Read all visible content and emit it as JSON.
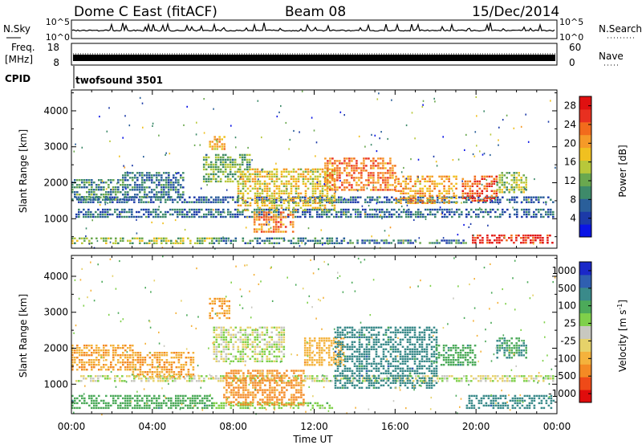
{
  "header": {
    "station": "Dome C East (fitACF)",
    "beam": "Beam 08",
    "date": "15/Dec/2014"
  },
  "status_panels": {
    "nsky_label": "N.Sky",
    "nsearch_label": "N.Search",
    "freq_label_line1": "Freq.",
    "freq_label_line2": "[MHz]",
    "nave_label": "Nave",
    "cpid_label": "CPID",
    "cpid_value": "twofsound 3501",
    "noise_ticks_left": [
      "10^5",
      "10^0"
    ],
    "noise_ticks_right": [
      "10^5",
      "10^0"
    ],
    "freq_ticks": [
      "18",
      "8"
    ],
    "nave_ticks": [
      "60",
      "0"
    ]
  },
  "colors": {
    "power_scale": [
      "#0a14e6",
      "#1c3aa8",
      "#2a5f9a",
      "#3e8a6a",
      "#6aa84f",
      "#b8c83a",
      "#f0c020",
      "#f59a28",
      "#f26b1c",
      "#e83020",
      "#e01010"
    ],
    "velocity_scale": [
      "#e00c0c",
      "#ef4a18",
      "#f48a24",
      "#f4b23c",
      "#e6d26a",
      "#c8c8c0",
      "#7fd04a",
      "#4caa5a",
      "#3a8a8a",
      "#2f5fb0",
      "#1a28c8"
    ]
  },
  "chart_data": [
    {
      "type": "heatmap",
      "title": "",
      "xlabel": "",
      "ylabel": "Slant Range [km]",
      "x_ticks": [
        "00:00",
        "04:00",
        "08:00",
        "12:00",
        "16:00",
        "20:00",
        "00:00"
      ],
      "xlim_hours": [
        0,
        24
      ],
      "y_ticks": [
        1000,
        2000,
        3000,
        4000
      ],
      "ylim": [
        180,
        4580
      ],
      "colorbar": {
        "label": "Power [dB]",
        "ticks": [
          4,
          8,
          12,
          16,
          20,
          24,
          28
        ],
        "range": [
          0,
          30
        ]
      },
      "regions": [
        {
          "t": [
            0.0,
            7.0
          ],
          "r": [
            330,
            480
          ],
          "value": 14
        },
        {
          "t": [
            7.0,
            13.5
          ],
          "r": [
            330,
            480
          ],
          "value": 9
        },
        {
          "t": [
            13.5,
            19.5
          ],
          "r": [
            300,
            420
          ],
          "value": 8
        },
        {
          "t": [
            19.8,
            23.8
          ],
          "r": [
            300,
            560
          ],
          "value": 27
        },
        {
          "t": [
            0.2,
            23.8
          ],
          "r": [
            1050,
            1280
          ],
          "value": 7
        },
        {
          "t": [
            0.2,
            23.8
          ],
          "r": [
            1420,
            1620
          ],
          "value": 7
        },
        {
          "t": [
            0.0,
            2.5
          ],
          "r": [
            1550,
            2100
          ],
          "value": 10
        },
        {
          "t": [
            2.5,
            5.5
          ],
          "r": [
            1600,
            2300
          ],
          "value": 8
        },
        {
          "t": [
            6.5,
            8.8
          ],
          "r": [
            2000,
            2800
          ],
          "value": 12
        },
        {
          "t": [
            6.8,
            7.6
          ],
          "r": [
            2900,
            3300
          ],
          "value": 20
        },
        {
          "t": [
            8.2,
            13.0
          ],
          "r": [
            1200,
            2400
          ],
          "value": 17
        },
        {
          "t": [
            9.0,
            11.0
          ],
          "r": [
            600,
            1200
          ],
          "value": 22
        },
        {
          "t": [
            12.5,
            16.0
          ],
          "r": [
            1800,
            2700
          ],
          "value": 22
        },
        {
          "t": [
            16.0,
            19.0
          ],
          "r": [
            1400,
            2200
          ],
          "value": 20
        },
        {
          "t": [
            19.3,
            21.0
          ],
          "r": [
            1500,
            2200
          ],
          "value": 24
        },
        {
          "t": [
            21.0,
            22.5
          ],
          "r": [
            1700,
            2300
          ],
          "value": 14
        }
      ]
    },
    {
      "type": "heatmap",
      "title": "",
      "xlabel": "Time UT",
      "ylabel": "Slant Range [km]",
      "x_ticks": [
        "00:00",
        "04:00",
        "08:00",
        "12:00",
        "16:00",
        "20:00",
        "00:00"
      ],
      "xlim_hours": [
        0,
        24
      ],
      "y_ticks": [
        1000,
        2000,
        3000,
        4000
      ],
      "ylim": [
        180,
        4580
      ],
      "colorbar": {
        "label": "Velocity [m s^-1]",
        "ticks": [
          "1000",
          "500",
          "100",
          "25",
          "-25",
          "-100",
          "-500",
          "-1000"
        ],
        "range": [
          -1000,
          1000
        ]
      },
      "regions": [
        {
          "t": [
            0.0,
            7.0
          ],
          "r": [
            330,
            700
          ],
          "value": 150
        },
        {
          "t": [
            7.0,
            13.0
          ],
          "r": [
            330,
            500
          ],
          "value": 40
        },
        {
          "t": [
            19.5,
            23.8
          ],
          "r": [
            330,
            700
          ],
          "value": 300
        },
        {
          "t": [
            0.2,
            23.8
          ],
          "r": [
            1050,
            1250
          ],
          "value": 0
        },
        {
          "t": [
            0.0,
            3.0
          ],
          "r": [
            1400,
            2100
          ],
          "value": -200
        },
        {
          "t": [
            3.0,
            6.0
          ],
          "r": [
            1200,
            1900
          ],
          "value": -200
        },
        {
          "t": [
            7.0,
            10.5
          ],
          "r": [
            1600,
            2600
          ],
          "value": 0
        },
        {
          "t": [
            6.8,
            7.8
          ],
          "r": [
            2800,
            3400
          ],
          "value": -200
        },
        {
          "t": [
            7.5,
            11.5
          ],
          "r": [
            400,
            1400
          ],
          "value": -250
        },
        {
          "t": [
            11.5,
            13.5
          ],
          "r": [
            1500,
            2300
          ],
          "value": -150
        },
        {
          "t": [
            13.0,
            18.0
          ],
          "r": [
            900,
            2600
          ],
          "value": 300
        },
        {
          "t": [
            18.0,
            20.0
          ],
          "r": [
            1500,
            2100
          ],
          "value": 150
        },
        {
          "t": [
            21.0,
            22.5
          ],
          "r": [
            1700,
            2300
          ],
          "value": 200
        }
      ]
    }
  ]
}
